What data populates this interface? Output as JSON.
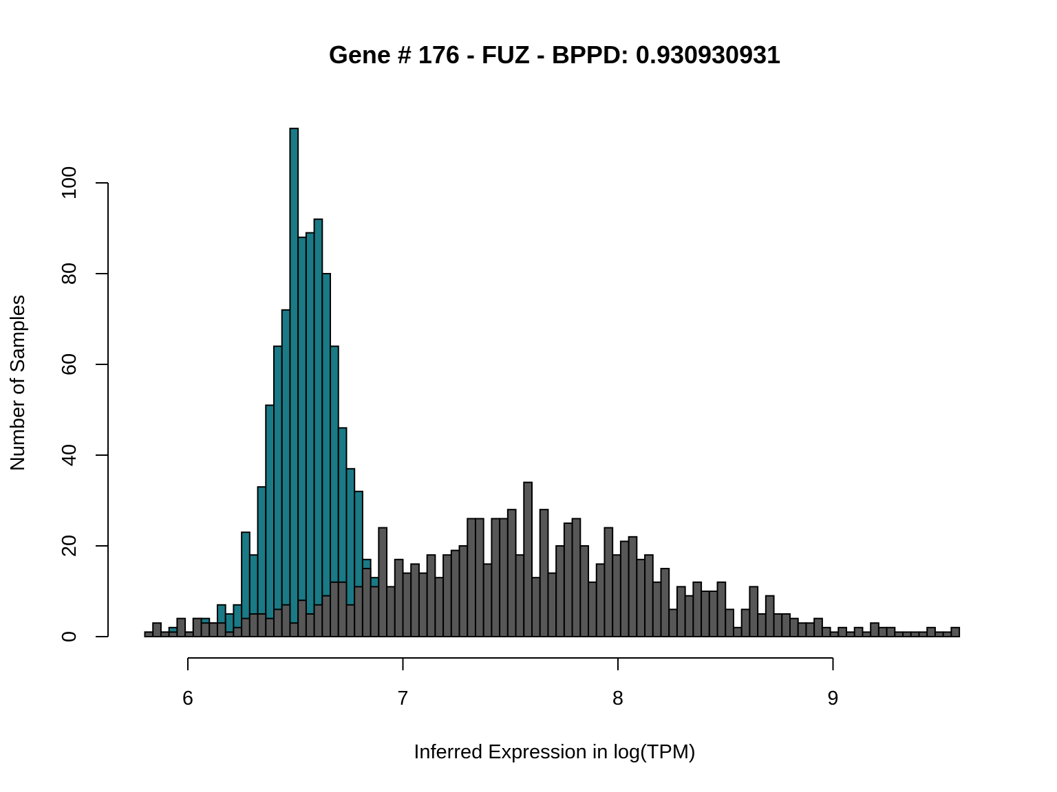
{
  "chart_data": {
    "type": "bar",
    "title": "Gene # 176 - FUZ - BPPD: 0.930930931",
    "xlabel": "Inferred Expression in log(TPM)",
    "ylabel": "Number of Samples",
    "xlim": [
      5.8,
      9.64
    ],
    "ylim": [
      0,
      112
    ],
    "x_ticks": [
      6,
      7,
      8,
      9
    ],
    "y_ticks": [
      0,
      20,
      40,
      60,
      80,
      100
    ],
    "bin_start": 5.8,
    "bin_width": 0.0375,
    "grid": false,
    "legend": "none",
    "colors": {
      "teal_series": "#1a7a85",
      "gray_series": "#575757"
    },
    "series": [
      {
        "values": [
          1,
          1,
          1,
          2,
          1,
          1,
          4,
          4,
          3,
          7,
          5,
          7,
          23,
          18,
          33,
          51,
          64,
          72,
          112,
          88,
          89,
          92,
          80,
          64,
          46,
          37,
          32,
          17,
          13,
          11,
          5,
          5,
          2,
          3,
          4,
          1,
          1,
          1,
          1
        ]
      },
      {
        "values": [
          1,
          3,
          1,
          1,
          4,
          1,
          4,
          3,
          3,
          3,
          1,
          2,
          4,
          5,
          5,
          4,
          6,
          7,
          3,
          8,
          5,
          7,
          9,
          12,
          12,
          7,
          11,
          15,
          11,
          24,
          11,
          17,
          14,
          16,
          14,
          18,
          13,
          18,
          19,
          20,
          26,
          26,
          16,
          26,
          26,
          28,
          18,
          34,
          13,
          28,
          14,
          20,
          25,
          26,
          20,
          12,
          16,
          24,
          18,
          21,
          22,
          17,
          18,
          12,
          15,
          6,
          11,
          9,
          12,
          10,
          10,
          12,
          6,
          2,
          6,
          11,
          5,
          9,
          5,
          5,
          4,
          3,
          3,
          4,
          2,
          1,
          2,
          1,
          2,
          1,
          3,
          2,
          2,
          1,
          1,
          1,
          1,
          2,
          1,
          1,
          2
        ]
      }
    ]
  }
}
